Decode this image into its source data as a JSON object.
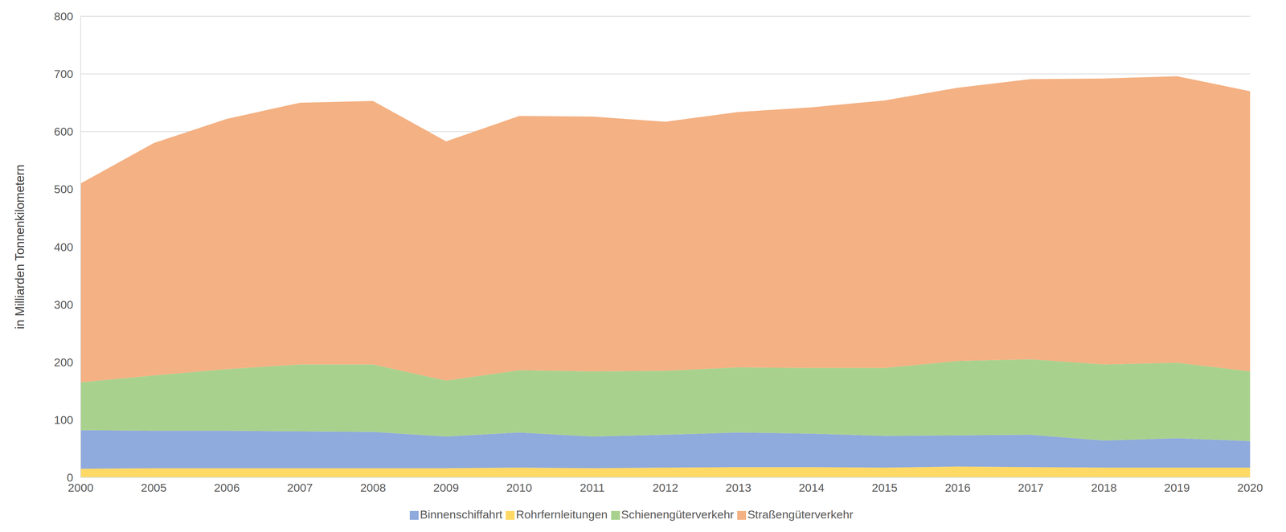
{
  "chart_data": {
    "type": "area",
    "y_label": "in Milliarden Tonnenkilometern",
    "categories": [
      "2000",
      "2005",
      "2006",
      "2007",
      "2008",
      "2009",
      "2010",
      "2011",
      "2012",
      "2013",
      "2014",
      "2015",
      "2016",
      "2017",
      "2018",
      "2019",
      "2020"
    ],
    "series": [
      {
        "name": "Rohrfernleitungen",
        "color": "#ffd966",
        "values": [
          15,
          16,
          16,
          16,
          16,
          16,
          17,
          16,
          17,
          18,
          18,
          17,
          19,
          18,
          17,
          17,
          17
        ]
      },
      {
        "name": "Binnenschiffahrt",
        "color": "#8faadc",
        "values": [
          67,
          65,
          65,
          64,
          63,
          55,
          61,
          55,
          57,
          60,
          58,
          55,
          54,
          56,
          47,
          51,
          46
        ]
      },
      {
        "name": "Schienengüterverkehr",
        "color": "#a9d18e",
        "values": [
          83,
          96,
          107,
          116,
          117,
          97,
          108,
          113,
          111,
          113,
          114,
          118,
          129,
          131,
          132,
          131,
          121
        ]
      },
      {
        "name": "Straßengüterverkehr",
        "color": "#f4b183",
        "values": [
          345,
          403,
          434,
          454,
          457,
          415,
          441,
          442,
          432,
          443,
          452,
          464,
          474,
          486,
          496,
          497,
          486
        ]
      }
    ],
    "ylim": [
      0,
      800
    ],
    "yticks": [
      0,
      100,
      200,
      300,
      400,
      500,
      600,
      700,
      800
    ],
    "stacked": true,
    "grid": true,
    "legend": "bottom"
  }
}
